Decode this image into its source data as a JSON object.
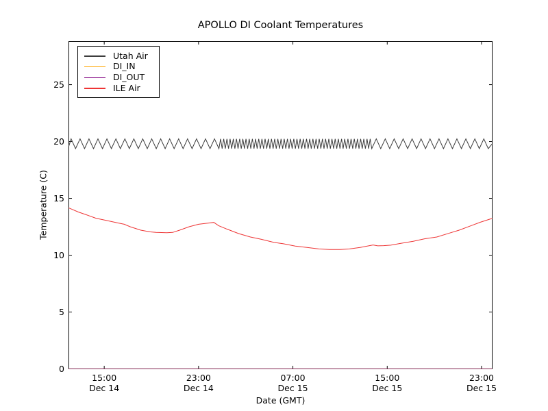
{
  "chart_data": {
    "type": "line",
    "title": "APOLLO DI Coolant Temperatures",
    "xlabel": "Date (GMT)",
    "ylabel": "Temperature (C)",
    "x_unit": "hours since Dec 14 ~12:00 GMT",
    "xlim": [
      0,
      35.9
    ],
    "ylim": [
      0,
      28.8
    ],
    "grid": false,
    "legend_position": "upper-left",
    "background_color": "#ffffff",
    "axis_color": "#000000",
    "yticks": [
      0,
      5,
      10,
      15,
      20,
      25
    ],
    "xticks": [
      {
        "hours": 3,
        "time": "15:00",
        "date": "Dec 14"
      },
      {
        "hours": 11,
        "time": "23:00",
        "date": "Dec 14"
      },
      {
        "hours": 19,
        "time": "07:00",
        "date": "Dec 15"
      },
      {
        "hours": 27,
        "time": "15:00",
        "date": "Dec 15"
      },
      {
        "hours": 35,
        "time": "23:00",
        "date": "Dec 15"
      }
    ],
    "series": [
      {
        "name": "Utah Air",
        "color": "#3d3d3d",
        "type": "zigzag",
        "mean": 19.8,
        "amplitude": 0.43,
        "description": "oscillates between ~19.4 and ~20.2 C for the whole window; oscillation period shortens in the middle third",
        "segments": [
          {
            "from": 0,
            "to": 12.45,
            "period": 0.76
          },
          {
            "from": 12.45,
            "to": 25.65,
            "period": 0.27
          },
          {
            "from": 25.65,
            "to": 35.9,
            "period": 0.76
          }
        ]
      },
      {
        "name": "DI_IN",
        "color": "#ffa500",
        "type": "xy",
        "opacity": 0.5,
        "x": [
          0,
          35.9
        ],
        "y": [
          0,
          0
        ]
      },
      {
        "name": "DI_OUT",
        "color": "#800080",
        "type": "xy",
        "opacity": 0.6,
        "x": [
          0,
          35.9
        ],
        "y": [
          0,
          0
        ]
      },
      {
        "name": "ILE Air",
        "color": "#ee3434",
        "type": "xy",
        "opacity": 1,
        "x": [
          0,
          0.8,
          1.5,
          2.3,
          3.2,
          4.1,
          4.7,
          5.2,
          6.1,
          6.9,
          7.4,
          8.3,
          8.8,
          9.4,
          10.2,
          11.0,
          11.6,
          12.3,
          12.7,
          13.4,
          14.4,
          15.4,
          16.3,
          17.4,
          18.2,
          19.2,
          20.2,
          21.2,
          22.1,
          23.0,
          23.8,
          24.7,
          25.8,
          26.2,
          26.7,
          27.3,
          28.2,
          29.2,
          30.2,
          31.2,
          32.3,
          33.1,
          34.0,
          34.9,
          35.8,
          35.9
        ],
        "y": [
          14.15,
          13.8,
          13.55,
          13.25,
          13.05,
          12.85,
          12.72,
          12.5,
          12.2,
          12.05,
          12.0,
          11.97,
          12.0,
          12.2,
          12.5,
          12.72,
          12.8,
          12.88,
          12.6,
          12.3,
          11.9,
          11.6,
          11.4,
          11.12,
          11.0,
          10.8,
          10.68,
          10.55,
          10.5,
          10.5,
          10.55,
          10.68,
          10.9,
          10.82,
          10.84,
          10.88,
          11.05,
          11.22,
          11.45,
          11.6,
          11.95,
          12.2,
          12.55,
          12.9,
          13.2,
          13.25
        ]
      }
    ]
  }
}
